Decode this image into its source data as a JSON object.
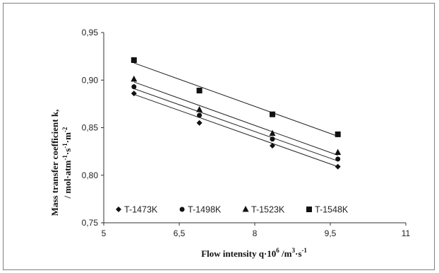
{
  "chart_data": {
    "type": "scatter",
    "xlabel": {
      "main": "Flow intensity q·10",
      "sup1": "6",
      "mid": " /m",
      "sup2": "3",
      "mid2": "·s",
      "sup3": "-1"
    },
    "ylabel": {
      "line1": "Mass transfer coefficient  k,",
      "line2_main": "/ mol·atm",
      "line2_sup1": "-1",
      "line2_mid": "·s",
      "line2_sup2": "-1",
      "line2_mid2": "·m",
      "line2_sup3": "-2"
    },
    "xlim": [
      5,
      11
    ],
    "ylim": [
      0.75,
      0.95
    ],
    "x_ticks": [
      5,
      6.5,
      8,
      9.5,
      11
    ],
    "x_tick_labels": [
      "5",
      "6,5",
      "8",
      "9,5",
      "11"
    ],
    "y_ticks": [
      0.75,
      0.8,
      0.85,
      0.9,
      0.95
    ],
    "y_tick_labels": [
      "0,75",
      "0,80",
      "0,85",
      "0,90",
      "0,95"
    ],
    "grid": false,
    "legend_position": "bottom-left inside plot",
    "series": [
      {
        "name": "T-1473K",
        "marker": "diamond",
        "x": [
          5.6,
          6.9,
          8.35,
          9.65
        ],
        "y": [
          0.886,
          0.855,
          0.831,
          0.809
        ],
        "fit": [
          0.885,
          0.809
        ]
      },
      {
        "name": "T-1498K",
        "marker": "circle",
        "x": [
          5.6,
          6.9,
          8.35,
          9.65
        ],
        "y": [
          0.893,
          0.863,
          0.838,
          0.817
        ],
        "fit": [
          0.891,
          0.815
        ]
      },
      {
        "name": "T-1523K",
        "marker": "triangle",
        "x": [
          5.6,
          6.9,
          8.35,
          9.65
        ],
        "y": [
          0.901,
          0.869,
          0.844,
          0.824
        ],
        "fit": [
          0.898,
          0.821
        ]
      },
      {
        "name": "T-1548K",
        "marker": "square",
        "x": [
          5.6,
          6.9,
          8.35,
          9.65
        ],
        "y": [
          0.921,
          0.889,
          0.864,
          0.843
        ],
        "fit": [
          0.918,
          0.841
        ]
      }
    ]
  }
}
